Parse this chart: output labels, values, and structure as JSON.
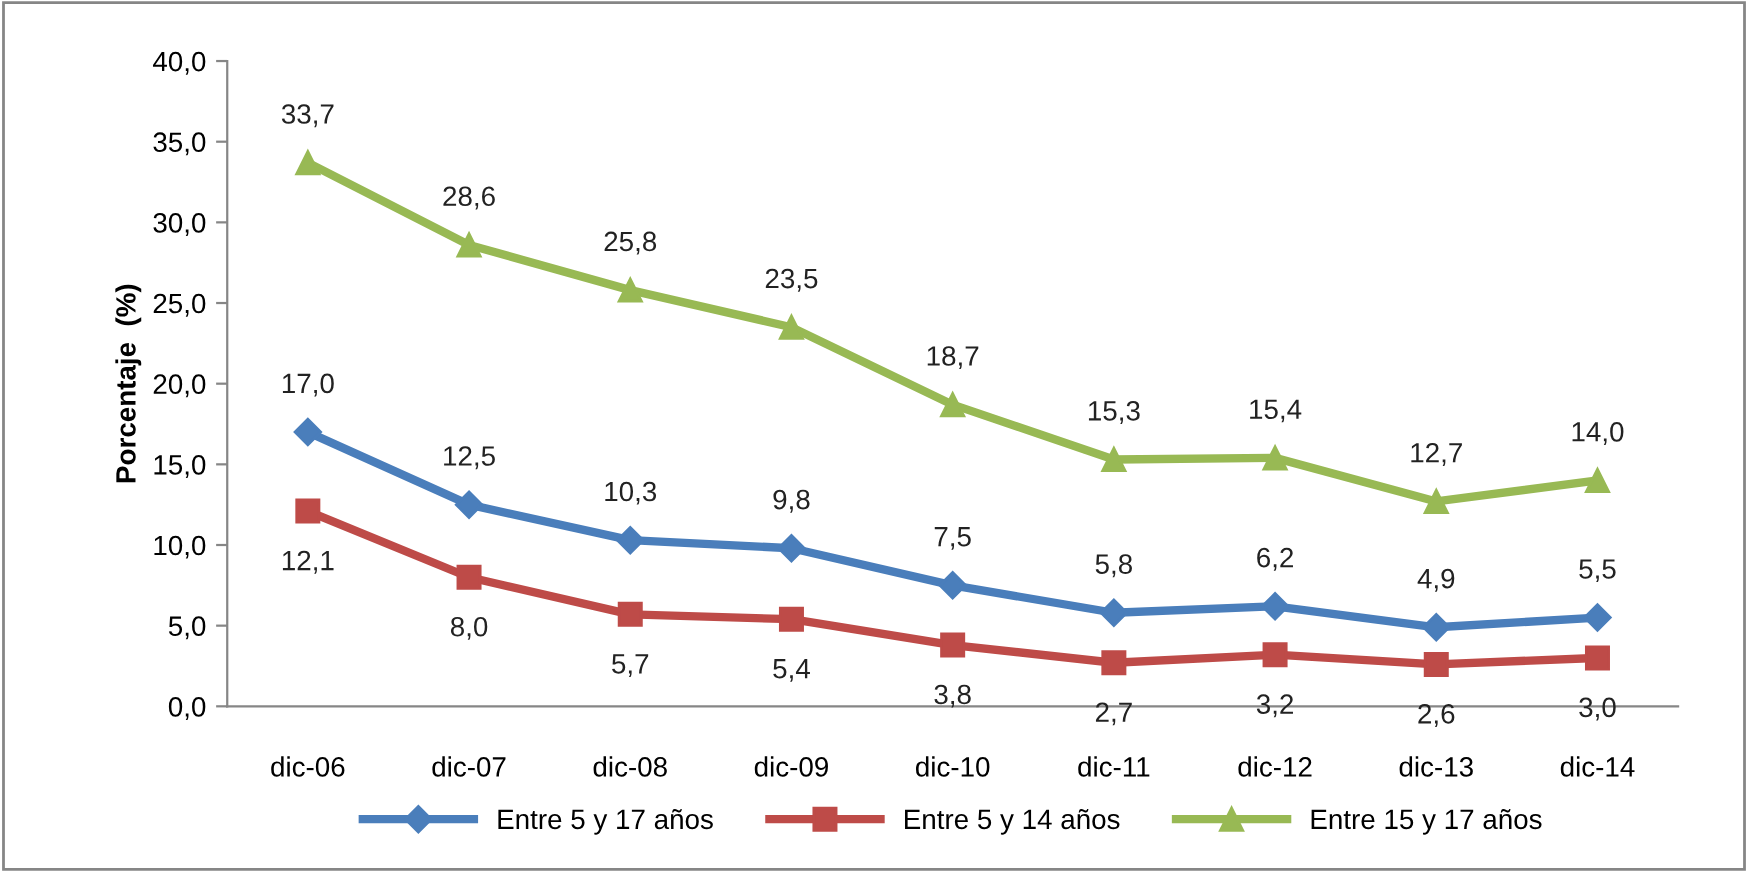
{
  "chart_data": {
    "type": "line",
    "ylabel": "Porcentaje  (%)",
    "categories": [
      "dic-06",
      "dic-07",
      "dic-08",
      "dic-09",
      "dic-10",
      "dic-11",
      "dic-12",
      "dic-13",
      "dic-14"
    ],
    "series": [
      {
        "name": "Entre 5 y 17 años",
        "color": "#4a7ebb",
        "marker": "diamond",
        "values": [
          17.0,
          12.5,
          10.3,
          9.8,
          7.5,
          5.8,
          6.2,
          4.9,
          5.5
        ],
        "value_labels": [
          "17,0",
          "12,5",
          "10,3",
          "9,8",
          "7,5",
          "5,8",
          "6,2",
          "4,9",
          "5,5"
        ]
      },
      {
        "name": "Entre 5 y 14 años",
        "color": "#be4b48",
        "marker": "square",
        "values": [
          12.1,
          8.0,
          5.7,
          5.4,
          3.8,
          2.7,
          3.2,
          2.6,
          3.0
        ],
        "value_labels": [
          "12,1",
          "8,0",
          "5,7",
          "5,4",
          "3,8",
          "2,7",
          "3,2",
          "2,6",
          "3,0"
        ]
      },
      {
        "name": "Entre 15 y 17 años",
        "color": "#98b954",
        "marker": "triangle",
        "values": [
          33.7,
          28.6,
          25.8,
          23.5,
          18.7,
          15.3,
          15.4,
          12.7,
          14.0
        ],
        "value_labels": [
          "33,7",
          "28,6",
          "25,8",
          "23,5",
          "18,7",
          "15,3",
          "15,4",
          "12,7",
          "14,0"
        ]
      }
    ],
    "ylim": [
      0,
      40
    ],
    "yticks": [
      {
        "value": 0,
        "label": "0,0"
      },
      {
        "value": 5,
        "label": "5,0"
      },
      {
        "value": 10,
        "label": "10,0"
      },
      {
        "value": 15,
        "label": "15,0"
      },
      {
        "value": 20,
        "label": "20,0"
      },
      {
        "value": 25,
        "label": "25,0"
      },
      {
        "value": 30,
        "label": "30,0"
      },
      {
        "value": 35,
        "label": "35,0"
      },
      {
        "value": 40,
        "label": "40,0"
      }
    ],
    "grid": false,
    "legend": "bottom",
    "line_style": "solid"
  }
}
